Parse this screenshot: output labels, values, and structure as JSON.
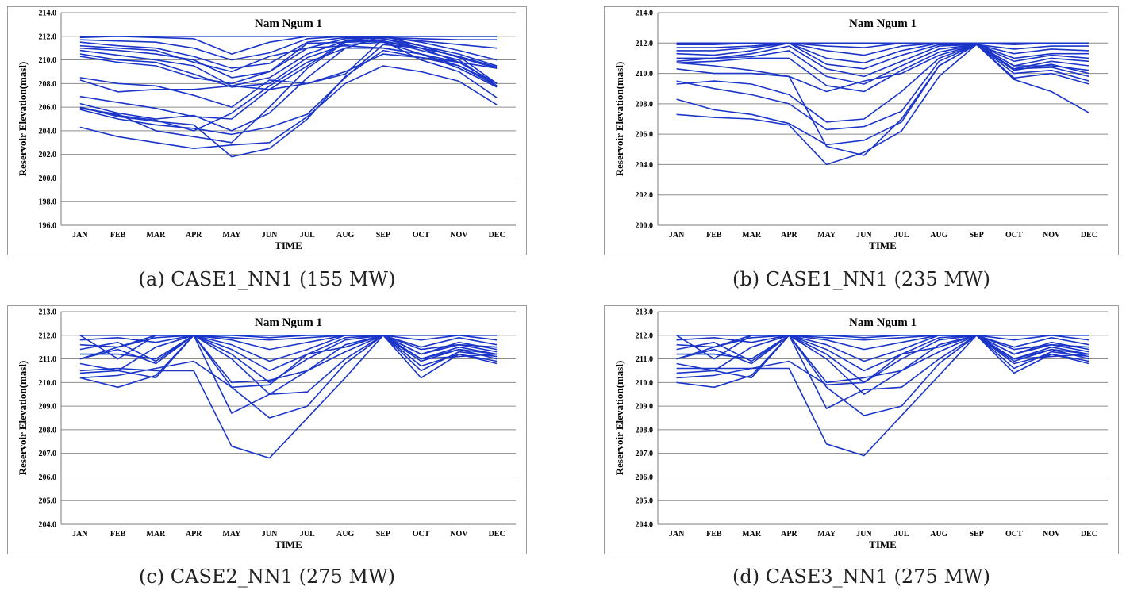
{
  "chart_data": [
    {
      "type": "line",
      "title": "Nam Ngum 1",
      "xlabel": "TIME",
      "ylabel": "Reservoir Elevation(masl)",
      "caption": "(a) CASE1_NN1 (155 MW)",
      "categories": [
        "JAN",
        "FEB",
        "MAR",
        "APR",
        "MAY",
        "JUN",
        "JUL",
        "AUG",
        "SEP",
        "OCT",
        "NOV",
        "DEC"
      ],
      "ylim": [
        196,
        214
      ],
      "yticks": [
        "196.0",
        "198.0",
        "200.0",
        "202.0",
        "204.0",
        "206.0",
        "208.0",
        "210.0",
        "212.0",
        "214.0"
      ],
      "grid": true,
      "line_color": "#1a35c8",
      "series": [
        {
          "values": [
            212.0,
            212.0,
            212.0,
            212.0,
            212.0,
            212.0,
            212.0,
            212.0,
            212.0,
            212.0,
            212.0,
            212.0
          ]
        },
        {
          "values": [
            211.9,
            212.0,
            211.9,
            211.8,
            210.5,
            211.5,
            212.0,
            212.0,
            212.0,
            212.0,
            212.0,
            212.0
          ]
        },
        {
          "values": [
            211.7,
            211.6,
            211.5,
            211.0,
            210.0,
            210.6,
            211.8,
            212.0,
            211.9,
            211.8,
            211.7,
            211.7
          ]
        },
        {
          "values": [
            211.5,
            211.2,
            211.0,
            210.3,
            209.3,
            209.7,
            211.5,
            211.9,
            211.9,
            211.6,
            211.3,
            211.0
          ]
        },
        {
          "values": [
            211.0,
            210.8,
            210.5,
            210.0,
            208.5,
            209.0,
            211.0,
            211.8,
            211.8,
            211.2,
            210.5,
            209.5
          ]
        },
        {
          "values": [
            210.8,
            210.4,
            210.0,
            209.5,
            207.8,
            208.5,
            210.5,
            211.6,
            211.6,
            211.0,
            209.8,
            209.3
          ]
        },
        {
          "values": [
            210.5,
            210.0,
            209.8,
            208.8,
            207.7,
            208.0,
            210.2,
            211.3,
            211.5,
            210.5,
            209.5,
            208.0
          ]
        },
        {
          "values": [
            210.3,
            209.8,
            209.5,
            208.5,
            208.0,
            209.0,
            211.4,
            211.5,
            211.6,
            210.8,
            210.0,
            207.8
          ]
        },
        {
          "values": [
            211.2,
            211.0,
            210.8,
            209.8,
            209.0,
            210.3,
            211.0,
            211.2,
            211.0,
            210.5,
            209.3,
            207.7
          ]
        },
        {
          "values": [
            208.5,
            208.0,
            207.8,
            207.0,
            206.0,
            208.3,
            208.0,
            208.8,
            211.8,
            211.0,
            210.3,
            209.4
          ]
        },
        {
          "values": [
            208.3,
            207.3,
            207.5,
            207.5,
            207.8,
            207.5,
            208.0,
            209.0,
            210.5,
            210.2,
            209.8,
            209.3
          ]
        },
        {
          "values": [
            206.9,
            206.4,
            205.9,
            205.2,
            205.0,
            207.5,
            209.5,
            211.6,
            212.0,
            211.2,
            210.2,
            209.3
          ]
        },
        {
          "values": [
            206.3,
            205.5,
            205.0,
            205.3,
            204.0,
            205.5,
            208.5,
            211.0,
            212.0,
            211.5,
            210.8,
            210.0
          ]
        },
        {
          "values": [
            206.0,
            205.3,
            204.9,
            204.0,
            205.5,
            207.8,
            209.8,
            211.0,
            211.0,
            210.5,
            209.8,
            208.0
          ]
        },
        {
          "values": [
            205.8,
            205.0,
            204.5,
            204.2,
            203.7,
            204.3,
            205.4,
            208.5,
            211.3,
            211.0,
            210.3,
            208.0
          ]
        },
        {
          "values": [
            205.9,
            205.4,
            204.0,
            203.5,
            203.0,
            206.0,
            209.3,
            211.5,
            211.6,
            210.0,
            209.0,
            206.8
          ]
        },
        {
          "values": [
            204.3,
            203.5,
            203.0,
            202.5,
            202.8,
            203.0,
            205.2,
            208.0,
            209.5,
            209.0,
            208.2,
            206.2
          ]
        },
        {
          "values": [
            206.0,
            205.2,
            204.8,
            204.5,
            201.8,
            202.5,
            205.0,
            208.6,
            210.8,
            210.2,
            209.5,
            207.8
          ]
        }
      ]
    },
    {
      "type": "line",
      "title": "Nam Ngum 1",
      "xlabel": "TIME",
      "ylabel": "Reservoir Elevation(masl)",
      "caption": "(b) CASE1_NN1 (235 MW)",
      "categories": [
        "JAN",
        "FEB",
        "MAR",
        "APR",
        "MAY",
        "JUN",
        "JUL",
        "AUG",
        "SEP",
        "OCT",
        "NOV",
        "DEC"
      ],
      "ylim": [
        200,
        214
      ],
      "yticks": [
        "200.0",
        "202.0",
        "204.0",
        "206.0",
        "208.0",
        "210.0",
        "212.0",
        "214.0"
      ],
      "grid": true,
      "line_color": "#1a35c8",
      "series": [
        {
          "values": [
            212.0,
            212.0,
            212.0,
            212.0,
            212.0,
            212.0,
            212.0,
            212.0,
            212.0,
            212.0,
            212.0,
            212.0
          ]
        },
        {
          "values": [
            211.9,
            211.9,
            212.0,
            212.0,
            211.8,
            211.7,
            212.0,
            212.0,
            212.0,
            211.9,
            212.0,
            212.0
          ]
        },
        {
          "values": [
            211.7,
            211.7,
            211.8,
            212.0,
            211.5,
            211.2,
            211.8,
            212.0,
            211.9,
            211.6,
            211.8,
            211.8
          ]
        },
        {
          "values": [
            211.5,
            211.5,
            211.7,
            212.0,
            211.0,
            210.7,
            211.5,
            212.0,
            211.9,
            211.3,
            211.6,
            211.5
          ]
        },
        {
          "values": [
            211.3,
            211.2,
            211.5,
            212.0,
            210.6,
            210.3,
            211.2,
            211.9,
            211.9,
            211.0,
            211.3,
            211.3
          ]
        },
        {
          "values": [
            211.0,
            211.0,
            211.3,
            211.8,
            210.3,
            209.8,
            210.8,
            211.8,
            211.9,
            210.8,
            211.2,
            211.0
          ]
        },
        {
          "values": [
            210.8,
            211.0,
            211.1,
            211.5,
            209.8,
            209.3,
            210.5,
            211.6,
            211.9,
            210.5,
            211.0,
            210.8
          ]
        },
        {
          "values": [
            210.7,
            210.8,
            211.0,
            211.0,
            209.2,
            208.8,
            210.2,
            211.4,
            211.9,
            210.3,
            210.8,
            210.5
          ]
        },
        {
          "values": [
            210.3,
            210.0,
            210.0,
            209.8,
            208.8,
            209.5,
            210.0,
            211.2,
            211.9,
            210.5,
            210.5,
            210.2
          ]
        },
        {
          "values": [
            209.3,
            209.5,
            209.3,
            208.6,
            206.8,
            207.0,
            208.8,
            211.0,
            211.9,
            210.3,
            210.4,
            209.8
          ]
        },
        {
          "values": [
            209.5,
            209.0,
            208.6,
            208.0,
            206.3,
            206.5,
            207.5,
            210.8,
            211.9,
            210.0,
            210.2,
            209.5
          ]
        },
        {
          "values": [
            208.3,
            207.6,
            207.3,
            206.7,
            205.3,
            205.6,
            206.8,
            210.5,
            211.9,
            209.7,
            210.0,
            209.3
          ]
        },
        {
          "values": [
            207.3,
            207.1,
            207.0,
            206.6,
            204.0,
            204.8,
            206.2,
            209.8,
            211.9,
            209.6,
            208.8,
            207.4
          ]
        },
        {
          "values": [
            210.7,
            210.5,
            210.2,
            209.8,
            205.2,
            204.6,
            207.0,
            210.5,
            211.9,
            210.2,
            210.6,
            210.0
          ]
        }
      ]
    },
    {
      "type": "line",
      "title": "Nam Ngum 1",
      "xlabel": "TIME",
      "ylabel": "Reservoir Elevation(masl)",
      "caption": "(c)  CASE2_NN1 (275 MW)",
      "categories": [
        "JAN",
        "FEB",
        "MAR",
        "APR",
        "MAY",
        "JUN",
        "JUL",
        "AUG",
        "SEP",
        "OCT",
        "NOV",
        "DEC"
      ],
      "ylim": [
        204,
        213
      ],
      "yticks": [
        "204.0",
        "205.0",
        "206.0",
        "207.0",
        "208.0",
        "209.0",
        "210.0",
        "211.0",
        "212.0",
        "213.0"
      ],
      "grid": true,
      "line_color": "#1a35c8",
      "series": [
        {
          "values": [
            212.0,
            212.0,
            212.0,
            212.0,
            212.0,
            212.0,
            212.0,
            212.0,
            212.0,
            212.0,
            212.0,
            212.0
          ]
        },
        {
          "values": [
            212.0,
            211.0,
            212.0,
            212.0,
            212.0,
            211.9,
            212.0,
            212.0,
            212.0,
            211.8,
            212.0,
            211.8
          ]
        },
        {
          "values": [
            211.8,
            211.9,
            211.7,
            212.0,
            211.9,
            211.8,
            211.9,
            212.0,
            212.0,
            211.5,
            211.9,
            211.6
          ]
        },
        {
          "values": [
            211.6,
            211.5,
            211.9,
            212.0,
            211.8,
            211.4,
            211.7,
            212.0,
            212.0,
            211.2,
            211.7,
            211.4
          ]
        },
        {
          "values": [
            211.4,
            211.7,
            210.9,
            212.0,
            211.6,
            210.9,
            211.4,
            212.0,
            212.0,
            211.0,
            211.5,
            211.2
          ]
        },
        {
          "values": [
            211.2,
            211.2,
            211.0,
            212.0,
            211.4,
            210.5,
            211.2,
            211.9,
            212.0,
            210.9,
            211.4,
            211.0
          ]
        },
        {
          "values": [
            211.0,
            211.4,
            210.8,
            212.0,
            211.2,
            210.0,
            211.0,
            211.8,
            212.0,
            210.5,
            211.3,
            211.1
          ]
        },
        {
          "values": [
            210.8,
            210.5,
            211.5,
            212.0,
            211.0,
            209.5,
            210.5,
            211.6,
            212.0,
            210.7,
            211.2,
            210.9
          ]
        },
        {
          "values": [
            210.4,
            210.5,
            210.2,
            212.0,
            210.0,
            210.1,
            210.5,
            211.3,
            212.0,
            211.0,
            211.1,
            211.2
          ]
        },
        {
          "values": [
            210.2,
            210.3,
            210.6,
            210.9,
            209.8,
            209.9,
            211.2,
            211.5,
            212.0,
            211.4,
            211.6,
            211.3
          ]
        },
        {
          "values": [
            210.2,
            209.8,
            210.3,
            212.0,
            208.7,
            209.5,
            209.6,
            211.0,
            212.0,
            210.2,
            211.2,
            210.8
          ]
        },
        {
          "values": [
            210.5,
            210.6,
            210.5,
            210.5,
            207.3,
            206.8,
            208.5,
            210.2,
            212.0,
            211.2,
            211.6,
            211.5
          ]
        },
        {
          "values": [
            211.0,
            211.5,
            212.0,
            212.0,
            209.8,
            208.5,
            209.0,
            210.8,
            212.0,
            211.0,
            211.4,
            211.2
          ]
        }
      ]
    },
    {
      "type": "line",
      "title": "Nam Ngum 1",
      "xlabel": "TIME",
      "ylabel": "Reservoir Elevation(masl)",
      "caption": "(d)  CASE3_NN1 (275 MW)",
      "categories": [
        "JAN",
        "FEB",
        "MAR",
        "APR",
        "MAY",
        "JUN",
        "JUL",
        "AUG",
        "SEP",
        "OCT",
        "NOV",
        "DEC"
      ],
      "ylim": [
        204,
        213
      ],
      "yticks": [
        "204.0",
        "205.0",
        "206.0",
        "207.0",
        "208.0",
        "209.0",
        "210.0",
        "211.0",
        "212.0",
        "213.0"
      ],
      "grid": true,
      "line_color": "#1a35c8",
      "series": [
        {
          "values": [
            212.0,
            212.0,
            212.0,
            212.0,
            212.0,
            212.0,
            212.0,
            212.0,
            212.0,
            212.0,
            212.0,
            212.0
          ]
        },
        {
          "values": [
            212.0,
            211.0,
            212.0,
            212.0,
            212.0,
            211.9,
            212.0,
            212.0,
            212.0,
            211.8,
            212.0,
            211.8
          ]
        },
        {
          "values": [
            211.8,
            211.9,
            211.7,
            212.0,
            211.9,
            211.8,
            211.9,
            212.0,
            212.0,
            211.5,
            211.9,
            211.6
          ]
        },
        {
          "values": [
            211.6,
            211.5,
            211.9,
            212.0,
            211.8,
            211.4,
            211.7,
            212.0,
            212.0,
            211.2,
            211.7,
            211.4
          ]
        },
        {
          "values": [
            211.4,
            211.7,
            210.9,
            212.0,
            211.6,
            210.9,
            211.4,
            212.0,
            212.0,
            211.0,
            211.5,
            211.2
          ]
        },
        {
          "values": [
            211.2,
            211.2,
            211.0,
            212.0,
            211.4,
            210.5,
            211.2,
            211.9,
            212.0,
            210.9,
            211.4,
            211.0
          ]
        },
        {
          "values": [
            211.0,
            211.4,
            210.8,
            212.0,
            211.2,
            210.0,
            211.0,
            211.8,
            212.0,
            210.6,
            211.3,
            211.1
          ]
        },
        {
          "values": [
            210.8,
            210.5,
            211.5,
            212.0,
            211.0,
            209.5,
            210.5,
            211.6,
            212.0,
            210.8,
            211.2,
            210.9
          ]
        },
        {
          "values": [
            210.4,
            210.5,
            210.2,
            212.0,
            210.0,
            210.2,
            210.5,
            211.3,
            212.0,
            211.0,
            211.1,
            211.2
          ]
        },
        {
          "values": [
            210.2,
            210.3,
            210.6,
            210.9,
            209.9,
            210.0,
            211.2,
            211.5,
            212.0,
            211.4,
            211.6,
            211.3
          ]
        },
        {
          "values": [
            210.0,
            209.8,
            210.3,
            212.0,
            208.9,
            209.7,
            209.8,
            211.0,
            212.0,
            210.4,
            211.2,
            210.8
          ]
        },
        {
          "values": [
            210.6,
            210.6,
            210.6,
            210.6,
            207.4,
            206.9,
            208.6,
            210.3,
            212.0,
            211.2,
            211.6,
            211.5
          ]
        },
        {
          "values": [
            211.0,
            211.5,
            212.0,
            212.0,
            209.8,
            208.6,
            209.0,
            210.8,
            212.0,
            211.0,
            211.4,
            211.2
          ]
        }
      ]
    }
  ]
}
